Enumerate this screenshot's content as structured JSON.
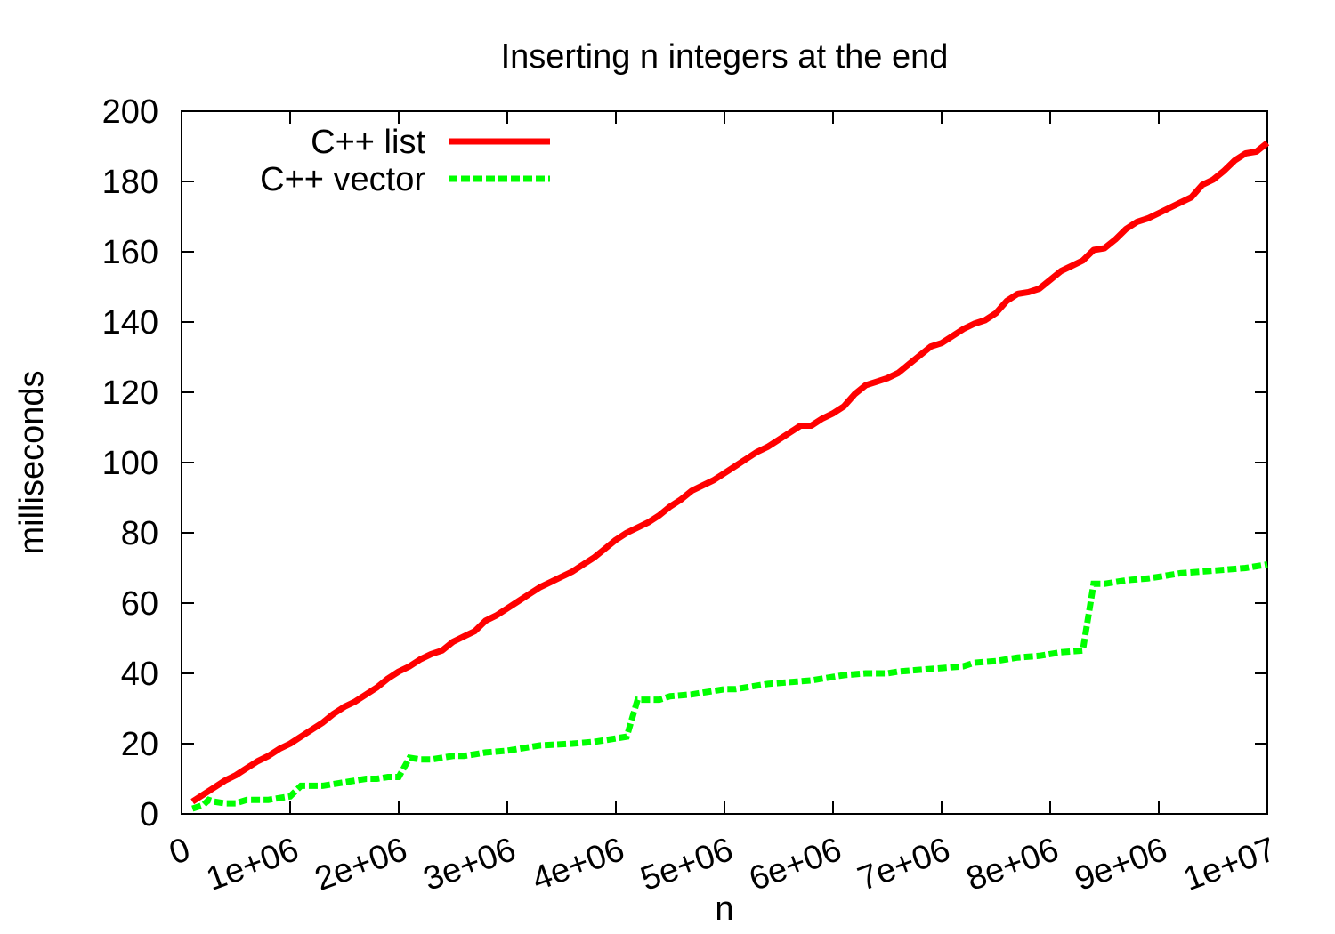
{
  "chart_data": {
    "type": "line",
    "title": "Inserting n integers at the end",
    "xlabel": "n",
    "ylabel": "milliseconds",
    "xlim": [
      0,
      10000000
    ],
    "ylim": [
      0,
      200
    ],
    "x_ticks": [
      {
        "value": 0,
        "label": "0"
      },
      {
        "value": 1000000,
        "label": "1e+06"
      },
      {
        "value": 2000000,
        "label": "2e+06"
      },
      {
        "value": 3000000,
        "label": "3e+06"
      },
      {
        "value": 4000000,
        "label": "4e+06"
      },
      {
        "value": 5000000,
        "label": "5e+06"
      },
      {
        "value": 6000000,
        "label": "6e+06"
      },
      {
        "value": 7000000,
        "label": "7e+06"
      },
      {
        "value": 8000000,
        "label": "8e+06"
      },
      {
        "value": 9000000,
        "label": "9e+06"
      },
      {
        "value": 10000000,
        "label": "1e+07"
      }
    ],
    "y_ticks": [
      {
        "value": 0,
        "label": "0"
      },
      {
        "value": 20,
        "label": "20"
      },
      {
        "value": 40,
        "label": "40"
      },
      {
        "value": 60,
        "label": "60"
      },
      {
        "value": 80,
        "label": "80"
      },
      {
        "value": 100,
        "label": "100"
      },
      {
        "value": 120,
        "label": "120"
      },
      {
        "value": 140,
        "label": "140"
      },
      {
        "value": 160,
        "label": "160"
      },
      {
        "value": 180,
        "label": "180"
      },
      {
        "value": 200,
        "label": "200"
      }
    ],
    "grid": false,
    "legend_position": "top-left",
    "series": [
      {
        "name": "C++ list",
        "color": "#ff0000",
        "style": "solid",
        "points": [
          [
            100000,
            3.5
          ],
          [
            200000,
            5.5
          ],
          [
            300000,
            7.5
          ],
          [
            400000,
            9.5
          ],
          [
            500000,
            11
          ],
          [
            600000,
            13
          ],
          [
            700000,
            15
          ],
          [
            800000,
            16.5
          ],
          [
            900000,
            18.5
          ],
          [
            1000000,
            20
          ],
          [
            1100000,
            22
          ],
          [
            1200000,
            24
          ],
          [
            1300000,
            26
          ],
          [
            1400000,
            28.5
          ],
          [
            1500000,
            30.5
          ],
          [
            1600000,
            32
          ],
          [
            1700000,
            34
          ],
          [
            1800000,
            36
          ],
          [
            1900000,
            38.5
          ],
          [
            2000000,
            40.5
          ],
          [
            2100000,
            42
          ],
          [
            2200000,
            44
          ],
          [
            2300000,
            45.5
          ],
          [
            2400000,
            46.5
          ],
          [
            2500000,
            49
          ],
          [
            2600000,
            50.5
          ],
          [
            2700000,
            52
          ],
          [
            2800000,
            55
          ],
          [
            2900000,
            56.5
          ],
          [
            3000000,
            58.5
          ],
          [
            3100000,
            60.5
          ],
          [
            3200000,
            62.5
          ],
          [
            3300000,
            64.5
          ],
          [
            3400000,
            66
          ],
          [
            3500000,
            67.5
          ],
          [
            3600000,
            69
          ],
          [
            3700000,
            71
          ],
          [
            3800000,
            73
          ],
          [
            3900000,
            75.5
          ],
          [
            4000000,
            78
          ],
          [
            4100000,
            80
          ],
          [
            4200000,
            81.5
          ],
          [
            4300000,
            83
          ],
          [
            4400000,
            85
          ],
          [
            4500000,
            87.5
          ],
          [
            4600000,
            89.5
          ],
          [
            4700000,
            92
          ],
          [
            4800000,
            93.5
          ],
          [
            4900000,
            95
          ],
          [
            5000000,
            97
          ],
          [
            5100000,
            99
          ],
          [
            5200000,
            101
          ],
          [
            5300000,
            103
          ],
          [
            5400000,
            104.5
          ],
          [
            5500000,
            106.5
          ],
          [
            5600000,
            108.5
          ],
          [
            5700000,
            110.5
          ],
          [
            5800000,
            110.5
          ],
          [
            5900000,
            112.5
          ],
          [
            6000000,
            114
          ],
          [
            6100000,
            116
          ],
          [
            6200000,
            119.5
          ],
          [
            6300000,
            122
          ],
          [
            6400000,
            123
          ],
          [
            6500000,
            124
          ],
          [
            6600000,
            125.5
          ],
          [
            6700000,
            128
          ],
          [
            6800000,
            130.5
          ],
          [
            6900000,
            133
          ],
          [
            7000000,
            134
          ],
          [
            7100000,
            136
          ],
          [
            7200000,
            138
          ],
          [
            7300000,
            139.5
          ],
          [
            7400000,
            140.5
          ],
          [
            7500000,
            142.5
          ],
          [
            7600000,
            146
          ],
          [
            7700000,
            148
          ],
          [
            7800000,
            148.5
          ],
          [
            7900000,
            149.5
          ],
          [
            8000000,
            152
          ],
          [
            8100000,
            154.5
          ],
          [
            8200000,
            156
          ],
          [
            8300000,
            157.5
          ],
          [
            8400000,
            160.5
          ],
          [
            8500000,
            161
          ],
          [
            8600000,
            163.5
          ],
          [
            8700000,
            166.5
          ],
          [
            8800000,
            168.5
          ],
          [
            8900000,
            169.5
          ],
          [
            9000000,
            171
          ],
          [
            9100000,
            172.5
          ],
          [
            9200000,
            174
          ],
          [
            9300000,
            175.5
          ],
          [
            9400000,
            179
          ],
          [
            9500000,
            180.5
          ],
          [
            9600000,
            183
          ],
          [
            9700000,
            186
          ],
          [
            9800000,
            188
          ],
          [
            9900000,
            188.5
          ],
          [
            10000000,
            191
          ]
        ]
      },
      {
        "name": "C++ vector",
        "color": "#00ff00",
        "style": "dashed",
        "points": [
          [
            100000,
            1.5
          ],
          [
            200000,
            2.5
          ],
          [
            250000,
            4
          ],
          [
            300000,
            3.5
          ],
          [
            400000,
            3
          ],
          [
            500000,
            3
          ],
          [
            600000,
            4
          ],
          [
            800000,
            4
          ],
          [
            900000,
            4.5
          ],
          [
            1000000,
            5
          ],
          [
            1100000,
            8
          ],
          [
            1300000,
            8
          ],
          [
            1400000,
            8.5
          ],
          [
            1500000,
            9
          ],
          [
            1600000,
            9.5
          ],
          [
            1700000,
            10
          ],
          [
            1800000,
            10
          ],
          [
            1900000,
            10.5
          ],
          [
            2000000,
            10.5
          ],
          [
            2100000,
            16
          ],
          [
            2200000,
            15.5
          ],
          [
            2300000,
            15.5
          ],
          [
            2400000,
            16
          ],
          [
            2500000,
            16.5
          ],
          [
            2600000,
            16.5
          ],
          [
            2700000,
            17
          ],
          [
            2800000,
            17.5
          ],
          [
            3000000,
            18
          ],
          [
            3100000,
            18.5
          ],
          [
            3300000,
            19.5
          ],
          [
            3600000,
            20
          ],
          [
            3800000,
            20.5
          ],
          [
            4000000,
            21.5
          ],
          [
            4100000,
            22
          ],
          [
            4200000,
            32.5
          ],
          [
            4400000,
            32.5
          ],
          [
            4500000,
            33.5
          ],
          [
            4700000,
            34
          ],
          [
            4800000,
            34.5
          ],
          [
            4900000,
            35
          ],
          [
            5000000,
            35.5
          ],
          [
            5100000,
            35.5
          ],
          [
            5300000,
            36.5
          ],
          [
            5400000,
            37
          ],
          [
            5600000,
            37.5
          ],
          [
            5800000,
            38
          ],
          [
            6000000,
            39
          ],
          [
            6100000,
            39.5
          ],
          [
            6300000,
            40
          ],
          [
            6500000,
            40
          ],
          [
            6600000,
            40.5
          ],
          [
            6800000,
            41
          ],
          [
            7000000,
            41.5
          ],
          [
            7200000,
            42
          ],
          [
            7300000,
            43
          ],
          [
            7500000,
            43.5
          ],
          [
            7600000,
            44
          ],
          [
            7700000,
            44.5
          ],
          [
            7900000,
            45
          ],
          [
            8000000,
            45.5
          ],
          [
            8100000,
            46
          ],
          [
            8300000,
            46.5
          ],
          [
            8400000,
            65.5
          ],
          [
            8500000,
            65.5
          ],
          [
            8600000,
            66
          ],
          [
            8700000,
            66.5
          ],
          [
            8900000,
            67
          ],
          [
            9000000,
            67.5
          ],
          [
            9200000,
            68.5
          ],
          [
            9400000,
            69
          ],
          [
            9600000,
            69.5
          ],
          [
            9800000,
            70
          ],
          [
            10000000,
            71
          ]
        ]
      }
    ]
  }
}
